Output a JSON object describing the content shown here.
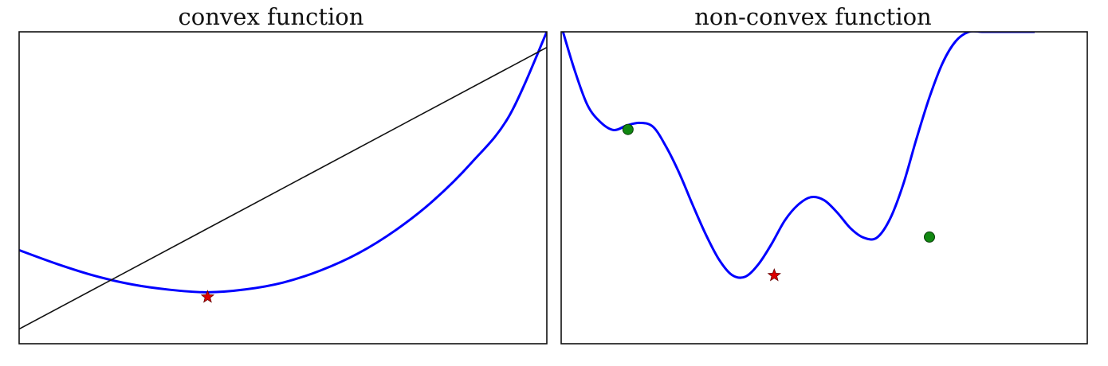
{
  "chart_data": [
    {
      "type": "line",
      "title": "convex function",
      "xlabel": "",
      "ylabel": "",
      "grid": false,
      "xlim": [
        -2.5,
        4.5
      ],
      "ylim": [
        0,
        100
      ],
      "colors": {
        "curve": "#0000ff",
        "chord": "#111111",
        "minimum": "#dd0000"
      },
      "series": [
        {
          "kind": "curve",
          "x": [
            -2.5,
            -2.0,
            -1.5,
            -1.0,
            -0.5,
            0.0,
            0.5,
            1.0,
            1.5,
            2.0,
            2.5,
            3.0,
            3.5,
            4.0,
            4.5
          ],
          "y": [
            30.0,
            25.6,
            21.8,
            19.0,
            17.3,
            16.5,
            17.4,
            19.6,
            23.5,
            29.0,
            36.5,
            46.0,
            58.0,
            73.0,
            100.0
          ]
        },
        {
          "kind": "chord",
          "x": [
            -2.5,
            4.5
          ],
          "y": [
            4.7,
            95.0
          ]
        }
      ],
      "markers": [
        {
          "shape": "star",
          "x": 0.0,
          "y": 15.0,
          "color": "#dd0000"
        }
      ]
    },
    {
      "type": "line",
      "title": "non-convex function",
      "xlabel": "",
      "ylabel": "",
      "grid": false,
      "xlim": [
        0,
        10
      ],
      "ylim": [
        0,
        100
      ],
      "colors": {
        "curve": "#0000ff",
        "local_min": "#118811",
        "global_min": "#dd0000"
      },
      "series": [
        {
          "kind": "curve",
          "x": [
            0.0,
            0.25,
            0.5,
            0.75,
            1.0,
            1.25,
            1.5,
            1.75,
            2.0,
            2.25,
            2.5,
            2.75,
            3.0,
            3.25,
            3.5,
            3.75,
            4.0,
            4.25,
            4.5,
            4.75,
            5.0,
            5.25,
            5.5,
            5.75,
            6.0,
            6.25,
            6.5,
            6.75,
            7.0,
            7.25,
            7.5,
            7.75,
            8.0,
            8.25,
            8.5,
            8.75,
            9.0
          ],
          "y": [
            102.0,
            88.0,
            76.5,
            71.0,
            68.5,
            70.0,
            70.8,
            69.5,
            63.0,
            54.5,
            44.5,
            35.0,
            27.0,
            22.0,
            21.5,
            25.5,
            32.0,
            39.5,
            44.5,
            47.0,
            46.0,
            42.0,
            37.0,
            34.0,
            34.0,
            40.0,
            51.0,
            65.5,
            79.0,
            90.0,
            97.0,
            100.0,
            100.0,
            100.0,
            100.0,
            100.0,
            100.0
          ]
        }
      ],
      "markers": [
        {
          "shape": "circle",
          "x": 1.27,
          "y": 68.7,
          "color": "#118811"
        },
        {
          "shape": "star",
          "x": 4.05,
          "y": 21.9,
          "color": "#dd0000"
        },
        {
          "shape": "circle",
          "x": 7.0,
          "y": 34.2,
          "color": "#118811"
        }
      ]
    }
  ]
}
